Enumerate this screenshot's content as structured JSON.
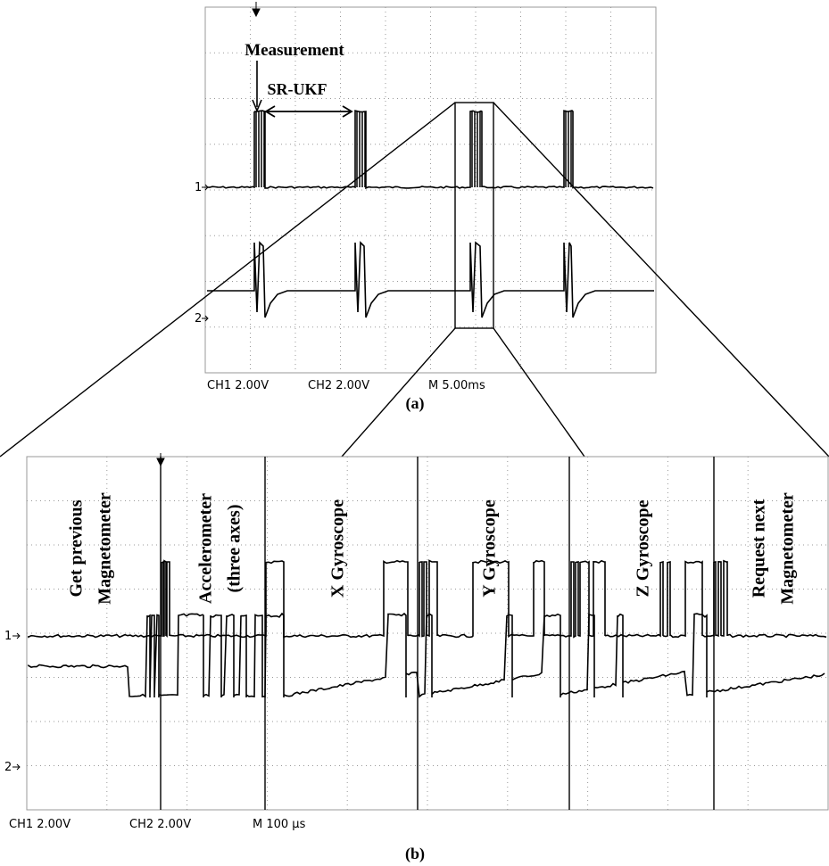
{
  "panel_a": {
    "annotations": {
      "measurement": "Measurement",
      "sr_ukf": "SR-UKF"
    },
    "channel_markers": [
      "1",
      "2"
    ],
    "status": [
      "CH1  2.00V",
      "CH2  2.00V",
      "M 5.00ms"
    ],
    "caption": "(a)"
  },
  "panel_b": {
    "sections": [
      {
        "lines": [
          "Get  previous",
          "Magnetometer"
        ]
      },
      {
        "lines": [
          "Accelerometer",
          "(three  axes)"
        ]
      },
      {
        "lines": [
          "X Gyroscope"
        ]
      },
      {
        "lines": [
          "Y Gyroscope"
        ]
      },
      {
        "lines": [
          "Z Gyroscope"
        ]
      },
      {
        "lines": [
          "Request  next",
          "Magnetometer"
        ]
      }
    ],
    "channel_markers": [
      "1",
      "2"
    ],
    "status": [
      "CH1  2.00V",
      "CH2  2.00V",
      "M 100 µs"
    ],
    "caption": "(b)"
  }
}
